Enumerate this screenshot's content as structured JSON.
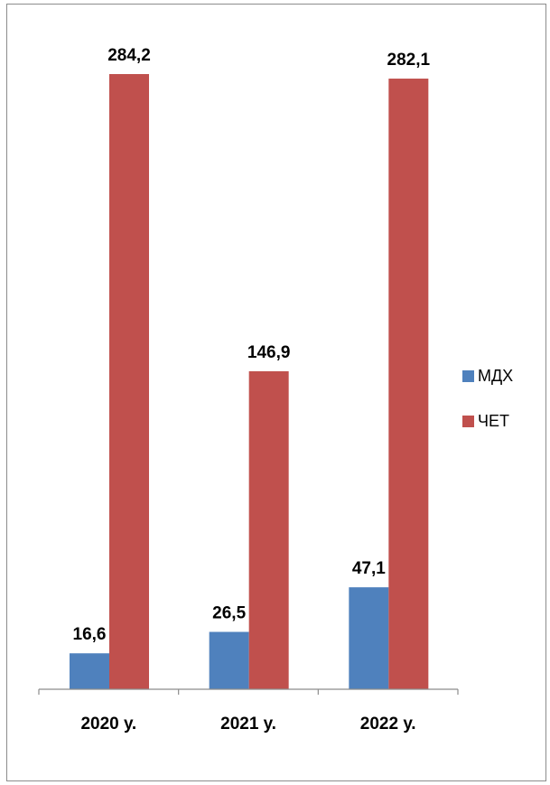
{
  "chart_data": {
    "type": "bar",
    "categories": [
      "2020 у.",
      "2021 у.",
      "2022 у."
    ],
    "series": [
      {
        "name": "МДХ",
        "values": [
          16.6,
          26.5,
          47.1
        ],
        "labels": [
          "16,6",
          "26,5",
          "47,1"
        ],
        "color": "#4F81BD"
      },
      {
        "name": "ЧЕТ",
        "values": [
          284.2,
          146.9,
          282.1
        ],
        "labels": [
          "284,2",
          "146,9",
          "282,1"
        ],
        "color": "#C0504D"
      }
    ],
    "ylim": [
      0,
      284.2
    ],
    "legend": "right",
    "grid": false
  }
}
